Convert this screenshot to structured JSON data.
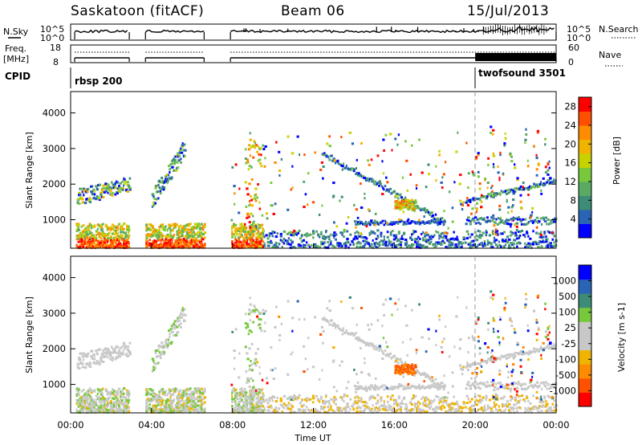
{
  "header": {
    "station": "Saskatoon (fitACF)",
    "beam": "Beam 06",
    "date": "15/Jul/2013"
  },
  "noise_panel": {
    "left_label": "N.Sky",
    "right_label": "N.Search",
    "left_ticks": [
      "10^5",
      "10^0"
    ],
    "right_ticks": [
      "10^5",
      "10^0"
    ]
  },
  "freq_panel": {
    "left_label_1": "Freq.",
    "left_label_2": "[MHz]",
    "right_label": "Nave",
    "left_ticks": [
      "18",
      "8"
    ],
    "right_ticks": [
      "60",
      "0"
    ]
  },
  "cpid": {
    "label": "CPID",
    "programs": [
      {
        "name": "rbsp 200",
        "start_hour": 0
      },
      {
        "name": "twofsound 3501",
        "start_hour": 20
      }
    ]
  },
  "colors": {
    "power_scale": [
      "#0000ff",
      "#2a64b4",
      "#3c8c78",
      "#5aaa64",
      "#78c83c",
      "#c8d200",
      "#f0b400",
      "#ff8c00",
      "#ff5000",
      "#ff0000"
    ],
    "velocity_scale": [
      "#ff0000",
      "#ff5000",
      "#ff8c00",
      "#f0b400",
      "#c8c8c8",
      "#c8c8c8",
      "#78c83c",
      "#3c8c78",
      "#2a64b4",
      "#0000ff"
    ],
    "ground_scatter": "#c8c8c8"
  },
  "chart_data": [
    {
      "type": "heatmap",
      "parameter": "Power",
      "ylabel": "Slant Range [km]",
      "yticks": [
        "1000",
        "2000",
        "3000",
        "4000"
      ],
      "ylim": [
        200,
        4600
      ],
      "xlim_hours": [
        0,
        24
      ],
      "colorbar": {
        "label": "Power [dB]",
        "ticks": [
          "4",
          "8",
          "12",
          "16",
          "20",
          "24",
          "28"
        ],
        "range": [
          0,
          30
        ]
      }
    },
    {
      "type": "heatmap",
      "parameter": "Velocity",
      "ylabel": "Slant Range [km]",
      "yticks": [
        "1000",
        "2000",
        "3000",
        "4000"
      ],
      "ylim": [
        200,
        4600
      ],
      "xlim_hours": [
        0,
        24
      ],
      "xticks": [
        "00:00",
        "04:00",
        "08:00",
        "12:00",
        "16:00",
        "20:00",
        "00:00"
      ],
      "xlabel": "Time UT",
      "colorbar": {
        "label": "Velocity [m s-1]",
        "ticks": [
          "1000",
          "500",
          "100",
          "25",
          "-25",
          "-100",
          "-500",
          "-1000"
        ]
      }
    }
  ]
}
